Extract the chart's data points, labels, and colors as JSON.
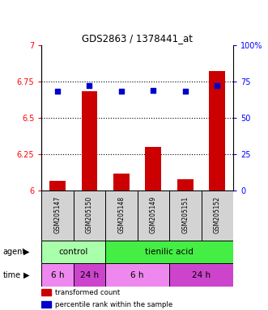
{
  "title": "GDS2863 / 1378441_at",
  "samples": [
    "GSM205147",
    "GSM205150",
    "GSM205148",
    "GSM205149",
    "GSM205151",
    "GSM205152"
  ],
  "bar_values": [
    6.07,
    6.68,
    6.12,
    6.3,
    6.08,
    6.82
  ],
  "dot_values": [
    68,
    72,
    68,
    69,
    68,
    72
  ],
  "ylim_left": [
    6.0,
    7.0
  ],
  "ylim_right": [
    0,
    100
  ],
  "yticks_left": [
    6.0,
    6.25,
    6.5,
    6.75,
    7.0
  ],
  "ytick_labels_left": [
    "6",
    "6.25",
    "6.5",
    "6.75",
    "7"
  ],
  "yticks_right": [
    0,
    25,
    50,
    75,
    100
  ],
  "ytick_labels_right": [
    "0",
    "25",
    "50",
    "75",
    "100%"
  ],
  "hlines": [
    6.25,
    6.5,
    6.75
  ],
  "bar_color": "#cc0000",
  "dot_color": "#0000cc",
  "bar_width": 0.5,
  "agent_labels": [
    {
      "label": "control",
      "start": 0,
      "end": 2,
      "color": "#aaffaa"
    },
    {
      "label": "tienilic acid",
      "start": 2,
      "end": 6,
      "color": "#44ee44"
    }
  ],
  "time_labels": [
    {
      "label": "6 h",
      "start": 0,
      "end": 1,
      "color": "#ee88ee"
    },
    {
      "label": "24 h",
      "start": 1,
      "end": 2,
      "color": "#cc44cc"
    },
    {
      "label": "6 h",
      "start": 2,
      "end": 4,
      "color": "#ee88ee"
    },
    {
      "label": "24 h",
      "start": 4,
      "end": 6,
      "color": "#cc44cc"
    }
  ],
  "legend_bar_label": "transformed count",
  "legend_dot_label": "percentile rank within the sample",
  "agent_row_label": "agent",
  "time_row_label": "time",
  "background_color": "#ffffff",
  "plot_bg_color": "#ffffff",
  "sample_bg_color": "#d3d3d3"
}
